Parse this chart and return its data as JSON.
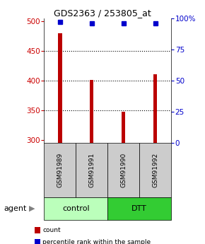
{
  "title": "GDS2363 / 253805_at",
  "samples": [
    "GSM91989",
    "GSM91991",
    "GSM91990",
    "GSM91992"
  ],
  "counts": [
    480,
    401,
    347,
    410
  ],
  "percentiles": [
    97,
    96,
    96,
    96
  ],
  "ylim_left": [
    295,
    505
  ],
  "ylim_right": [
    0,
    100
  ],
  "yticks_left": [
    300,
    350,
    400,
    450,
    500
  ],
  "yticks_right": [
    0,
    25,
    50,
    75,
    100
  ],
  "ytick_labels_right": [
    "0",
    "25",
    "50",
    "75",
    "100%"
  ],
  "grid_values": [
    350,
    400,
    450
  ],
  "bar_color": "#bb0000",
  "dot_color": "#0000cc",
  "groups": [
    {
      "label": "control",
      "indices": [
        0,
        1
      ],
      "color": "#bbffbb"
    },
    {
      "label": "DTT",
      "indices": [
        2,
        3
      ],
      "color": "#33cc33"
    }
  ],
  "agent_label": "agent",
  "legend_items": [
    {
      "color": "#bb0000",
      "label": "count"
    },
    {
      "color": "#0000cc",
      "label": "percentile rank within the sample"
    }
  ],
  "left_tick_color": "#cc0000",
  "right_tick_color": "#0000cc",
  "sample_box_color": "#cccccc",
  "bar_width": 0.12
}
